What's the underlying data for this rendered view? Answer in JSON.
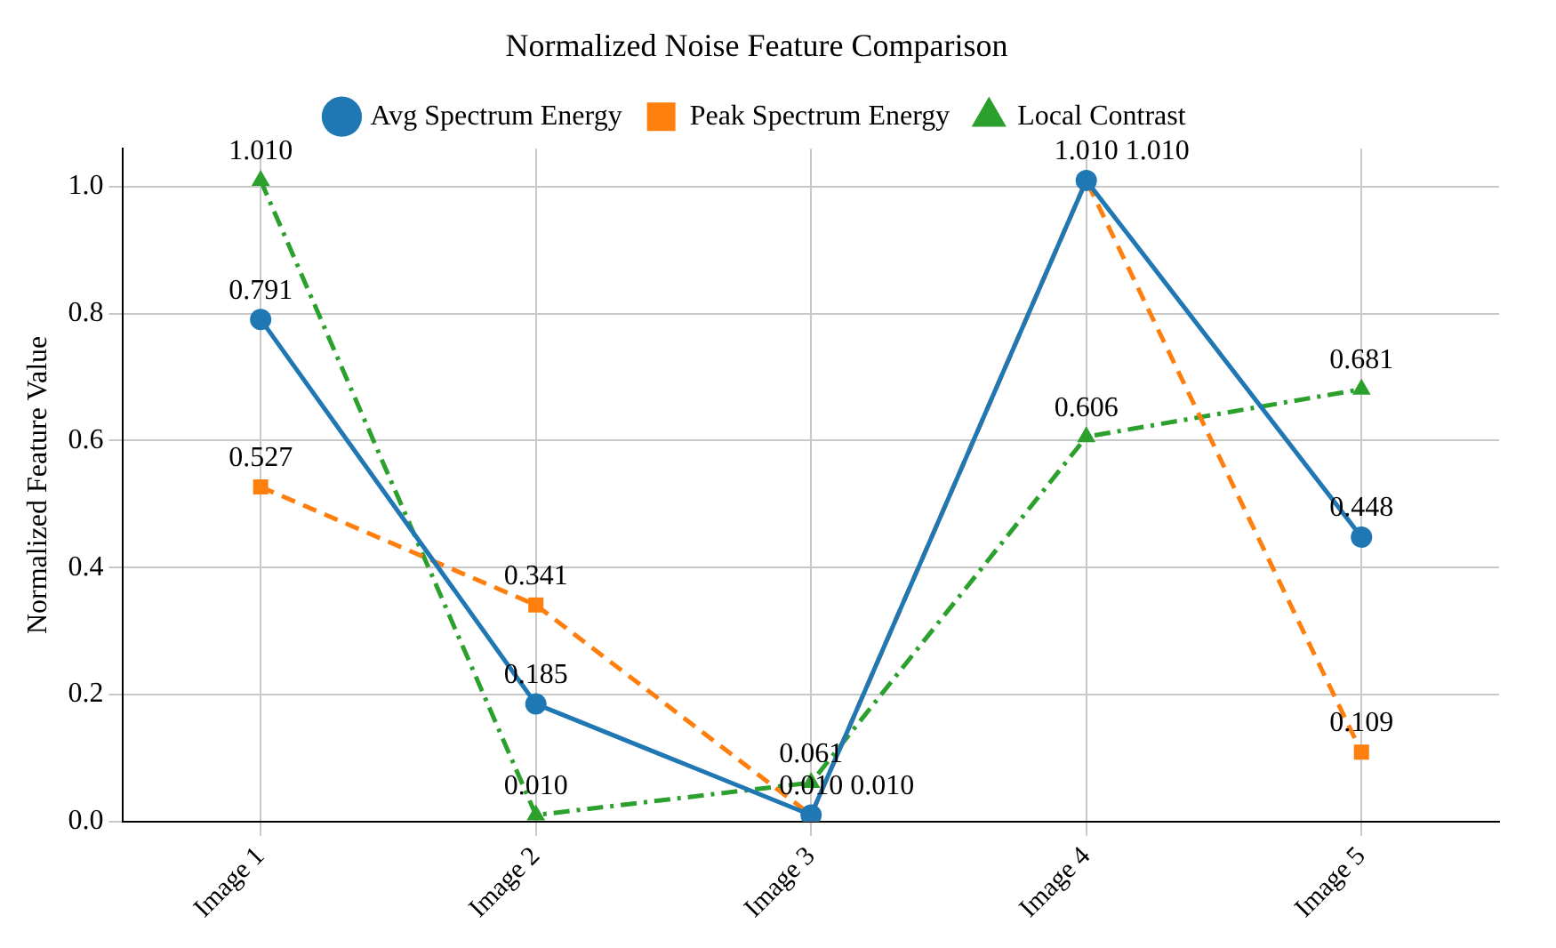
{
  "chart_data": {
    "type": "line",
    "title": "Normalized Noise Feature Comparison",
    "ylabel": "Normalized Feature Value",
    "categories": [
      "Image 1",
      "Image 2",
      "Image 3",
      "Image 4",
      "Image 5"
    ],
    "series": [
      {
        "name": "Avg Spectrum Energy",
        "color": "#1f77b4",
        "values": [
          0.791,
          0.185,
          0.01,
          1.01,
          0.448
        ],
        "value_labels": [
          "0.791",
          "0.185",
          "0.010",
          "1.010",
          "0.448"
        ],
        "marker": "circle",
        "line_style": "solid"
      },
      {
        "name": "Peak Spectrum Energy",
        "color": "#ff7f0e",
        "values": [
          0.527,
          0.341,
          0.01,
          1.01,
          0.109
        ],
        "value_labels": [
          "0.527",
          "0.341",
          "0.010",
          "1.010",
          "0.109"
        ],
        "marker": "square",
        "line_style": "dashed"
      },
      {
        "name": "Local Contrast",
        "color": "#2ca02c",
        "values": [
          1.01,
          0.01,
          0.061,
          0.606,
          0.681
        ],
        "value_labels": [
          "1.010",
          "0.010",
          "0.061",
          "0.606",
          "0.681"
        ],
        "marker": "triangle",
        "line_style": "dashdot"
      }
    ],
    "ylim": [
      0,
      1.06
    ],
    "yticks": [
      {
        "value": 0,
        "label": "0.0"
      },
      {
        "value": 0.2,
        "label": "0.2"
      },
      {
        "value": 0.4,
        "label": "0.4"
      },
      {
        "value": 0.6,
        "label": "0.6"
      },
      {
        "value": 0.8,
        "label": "0.8"
      },
      {
        "value": 1,
        "label": "1.0"
      }
    ],
    "grid": true,
    "legend": "top"
  }
}
